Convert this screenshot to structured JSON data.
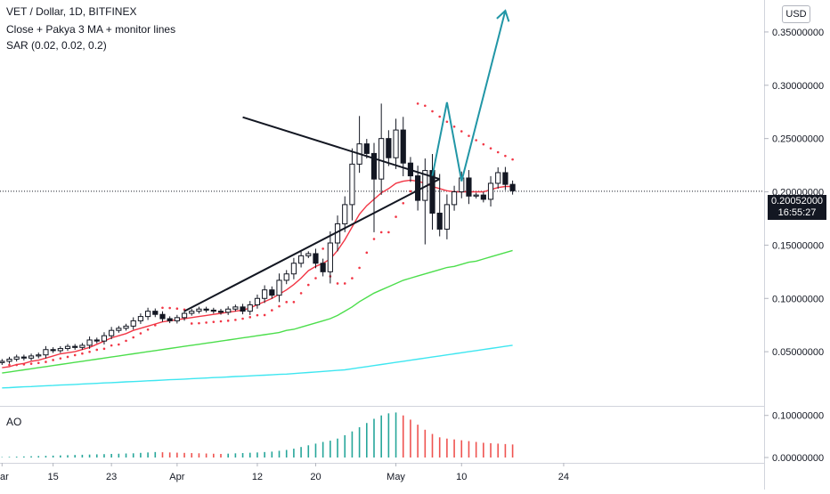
{
  "header": {
    "title": "VET / Dollar, 1D, BITFINEX",
    "indicator_ma": "Close + Pakya 3 MA + monitor lines",
    "indicator_sar": "SAR (0.02, 0.02, 0.2)"
  },
  "currency_button": "USD",
  "last_price": {
    "value": "0.20052000",
    "countdown": "16:55:27"
  },
  "ao_panel": {
    "label": "AO"
  },
  "chart_data": {
    "type": "candlestick",
    "title": "VET / Dollar, 1D, BITFINEX",
    "x_axis": {
      "type": "date",
      "ticks": [
        {
          "date": "2021-03-08",
          "label": "ar"
        },
        {
          "date": "2021-03-15",
          "label": "15"
        },
        {
          "date": "2021-03-23",
          "label": "23"
        },
        {
          "date": "2021-04-01",
          "label": "Apr"
        },
        {
          "date": "2021-04-12",
          "label": "12"
        },
        {
          "date": "2021-04-20",
          "label": "20"
        },
        {
          "date": "2021-05-01",
          "label": "May"
        },
        {
          "date": "2021-05-10",
          "label": "10"
        },
        {
          "date": "2021-05-24",
          "label": "24"
        }
      ]
    },
    "y_axis": {
      "range": [
        0.0,
        0.38
      ],
      "ticks": [
        "0.05000000",
        "0.10000000",
        "0.15000000",
        "0.20000000",
        "0.25000000",
        "0.30000000",
        "0.35000000"
      ]
    },
    "candles": {
      "start_date": "2021-03-08",
      "close": [
        0.041,
        0.043,
        0.045,
        0.044,
        0.046,
        0.047,
        0.052,
        0.051,
        0.053,
        0.055,
        0.054,
        0.056,
        0.061,
        0.06,
        0.065,
        0.07,
        0.072,
        0.074,
        0.079,
        0.083,
        0.088,
        0.085,
        0.081,
        0.079,
        0.082,
        0.086,
        0.088,
        0.09,
        0.089,
        0.088,
        0.087,
        0.09,
        0.092,
        0.088,
        0.094,
        0.1,
        0.108,
        0.103,
        0.117,
        0.123,
        0.133,
        0.14,
        0.142,
        0.133,
        0.125,
        0.152,
        0.17,
        0.188,
        0.226,
        0.245,
        0.236,
        0.212,
        0.25,
        0.232,
        0.258,
        0.227,
        0.215,
        0.192,
        0.22,
        0.18,
        0.165,
        0.188,
        0.2,
        0.213,
        0.196,
        0.197,
        0.193,
        0.208,
        0.218,
        0.207,
        0.201
      ]
    },
    "moving_averages": [
      {
        "color": "#f23645",
        "values": [
          0.035,
          0.036,
          0.038,
          0.039,
          0.041,
          0.042,
          0.044,
          0.046,
          0.048,
          0.049,
          0.05,
          0.052,
          0.054,
          0.057,
          0.06,
          0.063,
          0.065,
          0.067,
          0.07,
          0.072,
          0.074,
          0.076,
          0.078,
          0.079,
          0.08,
          0.081,
          0.082,
          0.083,
          0.084,
          0.085,
          0.086,
          0.087,
          0.088,
          0.089,
          0.091,
          0.094,
          0.097,
          0.1,
          0.104,
          0.108,
          0.113,
          0.119,
          0.126,
          0.13,
          0.133,
          0.137,
          0.145,
          0.155,
          0.167,
          0.179,
          0.187,
          0.193,
          0.199,
          0.203,
          0.208,
          0.21,
          0.211,
          0.21,
          0.208,
          0.205,
          0.203,
          0.201,
          0.2,
          0.2,
          0.2,
          0.2,
          0.2,
          0.202,
          0.204,
          0.205,
          0.205
        ]
      },
      {
        "color": "#4cde4c",
        "values": [
          0.03,
          0.031,
          0.032,
          0.033,
          0.034,
          0.035,
          0.036,
          0.037,
          0.038,
          0.039,
          0.04,
          0.041,
          0.042,
          0.043,
          0.044,
          0.045,
          0.046,
          0.047,
          0.048,
          0.049,
          0.05,
          0.051,
          0.052,
          0.053,
          0.054,
          0.055,
          0.056,
          0.057,
          0.058,
          0.059,
          0.06,
          0.061,
          0.062,
          0.063,
          0.064,
          0.065,
          0.066,
          0.067,
          0.068,
          0.07,
          0.071,
          0.073,
          0.075,
          0.077,
          0.079,
          0.081,
          0.084,
          0.088,
          0.092,
          0.097,
          0.101,
          0.105,
          0.108,
          0.111,
          0.114,
          0.117,
          0.119,
          0.121,
          0.123,
          0.125,
          0.127,
          0.129,
          0.13,
          0.132,
          0.134,
          0.135,
          0.137,
          0.139,
          0.141,
          0.143,
          0.145
        ]
      },
      {
        "color": "#3ee6f0",
        "values": [
          0.016,
          0.0163,
          0.0167,
          0.017,
          0.0173,
          0.0177,
          0.018,
          0.0183,
          0.0187,
          0.019,
          0.0193,
          0.0197,
          0.02,
          0.0203,
          0.0207,
          0.021,
          0.0213,
          0.0217,
          0.022,
          0.0223,
          0.0227,
          0.023,
          0.0233,
          0.0237,
          0.024,
          0.0243,
          0.0247,
          0.025,
          0.0253,
          0.0257,
          0.026,
          0.0263,
          0.0267,
          0.027,
          0.0273,
          0.0277,
          0.028,
          0.0283,
          0.0287,
          0.029,
          0.0295,
          0.03,
          0.0305,
          0.031,
          0.0315,
          0.032,
          0.0325,
          0.033,
          0.034,
          0.035,
          0.036,
          0.037,
          0.038,
          0.039,
          0.04,
          0.041,
          0.042,
          0.043,
          0.044,
          0.045,
          0.046,
          0.047,
          0.048,
          0.049,
          0.05,
          0.051,
          0.052,
          0.053,
          0.054,
          0.055,
          0.056
        ]
      }
    ],
    "sar_color": "#f23645",
    "drawings": {
      "triangle_upper": [
        {
          "date": "2021-04-10",
          "value": 0.27
        },
        {
          "date": "2021-05-07",
          "value": 0.212
        }
      ],
      "triangle_lower": [
        {
          "date": "2021-04-02",
          "value": 0.088
        },
        {
          "date": "2021-05-07",
          "value": 0.212
        }
      ],
      "projection_color": "#2196a6",
      "projection": [
        {
          "date": "2021-05-06",
          "value": 0.215
        },
        {
          "date": "2021-05-08",
          "value": 0.284
        },
        {
          "date": "2021-05-10",
          "value": 0.21
        },
        {
          "date": "2021-05-16",
          "value": 0.37
        }
      ]
    },
    "ao": {
      "range": [
        0.0,
        0.11
      ],
      "ticks": [
        "0.00000000",
        "0.10000000"
      ],
      "up_color": "#26a69a",
      "down_color": "#ef5350",
      "values": [
        0.001,
        0.0015,
        0.002,
        0.0025,
        0.003,
        0.0035,
        0.004,
        0.0045,
        0.005,
        0.0055,
        0.006,
        0.0065,
        0.007,
        0.0075,
        0.008,
        0.0085,
        0.009,
        0.0095,
        0.01,
        0.011,
        0.012,
        0.013,
        0.0125,
        0.012,
        0.0115,
        0.011,
        0.0105,
        0.01,
        0.0095,
        0.009,
        0.0085,
        0.0092,
        0.0099,
        0.0106,
        0.0113,
        0.012,
        0.013,
        0.014,
        0.016,
        0.018,
        0.021,
        0.025,
        0.029,
        0.033,
        0.037,
        0.04,
        0.045,
        0.053,
        0.062,
        0.072,
        0.082,
        0.092,
        0.1,
        0.105,
        0.107,
        0.1,
        0.09,
        0.078,
        0.066,
        0.056,
        0.048,
        0.045,
        0.043,
        0.041,
        0.039,
        0.037,
        0.035,
        0.034,
        0.033,
        0.032,
        0.031
      ]
    }
  }
}
